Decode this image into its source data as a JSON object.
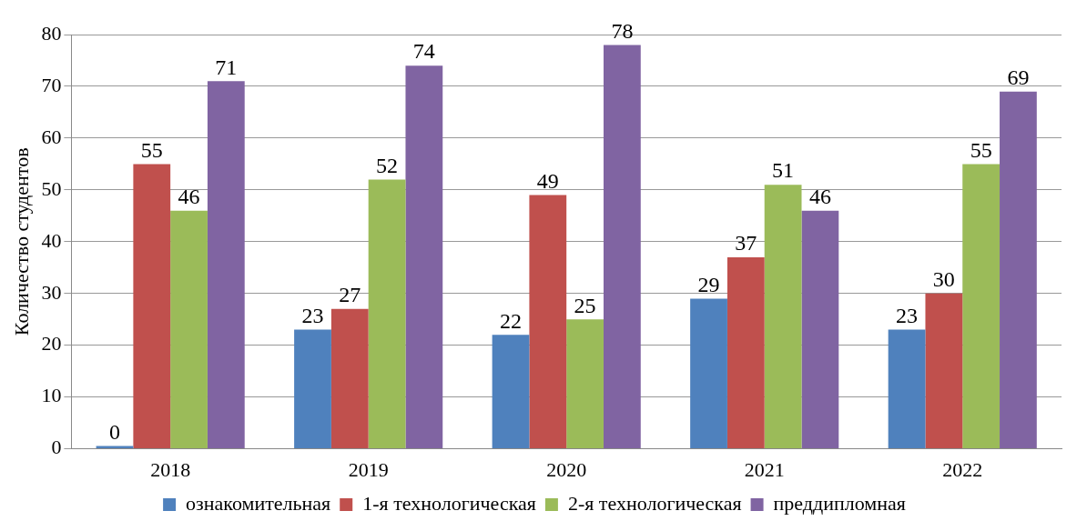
{
  "chart_data": {
    "type": "bar",
    "ylabel": "Количество студентов",
    "categories": [
      "2018",
      "2019",
      "2020",
      "2021",
      "2022"
    ],
    "series": [
      {
        "name": "ознакомительная",
        "color": "#4f81bd",
        "values": [
          0,
          23,
          22,
          29,
          23
        ]
      },
      {
        "name": "1-я технологическая",
        "color": "#c0504d",
        "values": [
          55,
          27,
          49,
          37,
          30
        ]
      },
      {
        "name": "2-я технологическая",
        "color": "#9bbb59",
        "values": [
          46,
          52,
          25,
          51,
          55
        ]
      },
      {
        "name": "преддипломная",
        "color": "#8064a2",
        "values": [
          71,
          74,
          78,
          46,
          69
        ]
      }
    ],
    "ylim": [
      0,
      80
    ],
    "yticks": [
      0,
      10,
      20,
      30,
      40,
      50,
      60,
      70,
      80
    ],
    "grid": "y",
    "legend": "bottom",
    "data_labels": true
  }
}
